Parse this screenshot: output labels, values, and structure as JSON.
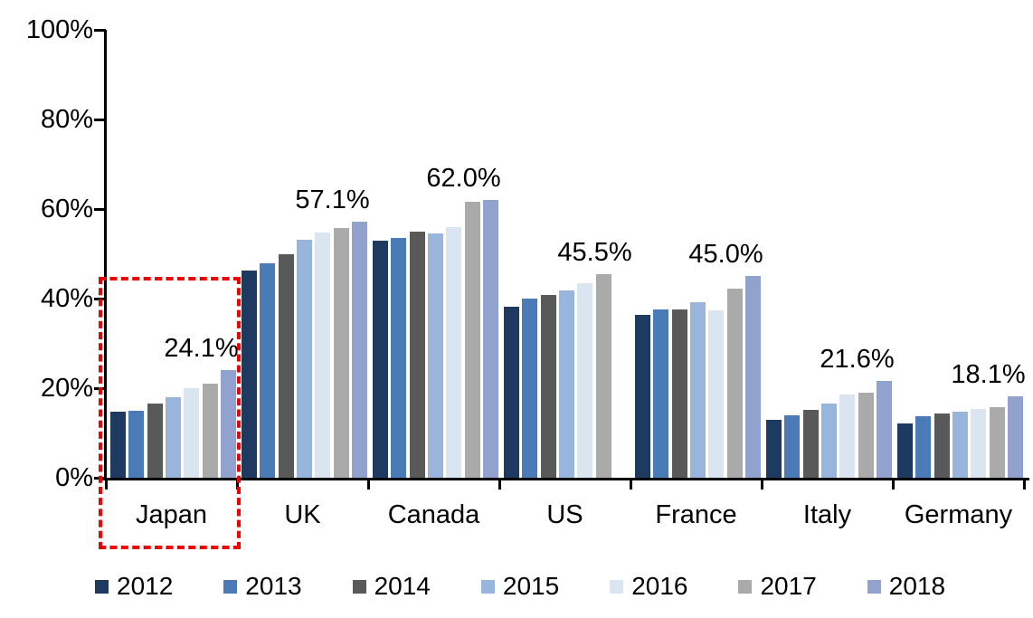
{
  "chart_data": {
    "type": "bar",
    "title": "",
    "categories": [
      "Japan",
      "UK",
      "Canada",
      "US",
      "France",
      "Italy",
      "Germany"
    ],
    "series": [
      {
        "name": "2012",
        "color": "#1f3a61",
        "values": [
          14.8,
          46.3,
          52.9,
          38.2,
          36.4,
          13.0,
          12.2
        ]
      },
      {
        "name": "2013",
        "color": "#4a7bb7",
        "values": [
          15.0,
          47.8,
          53.5,
          40.0,
          37.5,
          14.0,
          13.7
        ]
      },
      {
        "name": "2014",
        "color": "#595959",
        "values": [
          16.5,
          50.0,
          54.9,
          40.9,
          37.5,
          15.1,
          14.3
        ]
      },
      {
        "name": "2015",
        "color": "#99b5db",
        "values": [
          18.0,
          53.2,
          54.5,
          41.9,
          39.1,
          16.6,
          14.8
        ]
      },
      {
        "name": "2016",
        "color": "#dbe5f2",
        "values": [
          19.9,
          54.7,
          56.0,
          43.4,
          37.3,
          18.6,
          15.3
        ]
      },
      {
        "name": "2017",
        "color": "#aaaaaa",
        "values": [
          21.0,
          55.8,
          61.6,
          45.5,
          42.3,
          19.0,
          15.8
        ]
      },
      {
        "name": "2018",
        "color": "#90a2cd",
        "values": [
          24.1,
          57.1,
          62.0,
          null,
          45.0,
          21.6,
          18.1
        ]
      }
    ],
    "annotations": [
      {
        "category": "Japan",
        "text": "24.1%"
      },
      {
        "category": "UK",
        "text": "57.1%"
      },
      {
        "category": "Canada",
        "text": "62.0%"
      },
      {
        "category": "US",
        "text": "45.5%"
      },
      {
        "category": "France",
        "text": "45.0%"
      },
      {
        "category": "Italy",
        "text": "21.6%"
      },
      {
        "category": "Germany",
        "text": "18.1%"
      }
    ],
    "xlabel": "",
    "ylabel": "",
    "ylim": [
      0,
      100
    ],
    "ytick_labels": [
      "0%",
      "20%",
      "40%",
      "60%",
      "80%",
      "100%"
    ],
    "grid": false,
    "legend_position": "bottom",
    "legend_entries": [
      "2012",
      "2013",
      "2014",
      "2015",
      "2016",
      "2017",
      "2018"
    ],
    "highlight": {
      "category": "Japan",
      "style": "dashed-box",
      "color": "#f10000"
    }
  }
}
